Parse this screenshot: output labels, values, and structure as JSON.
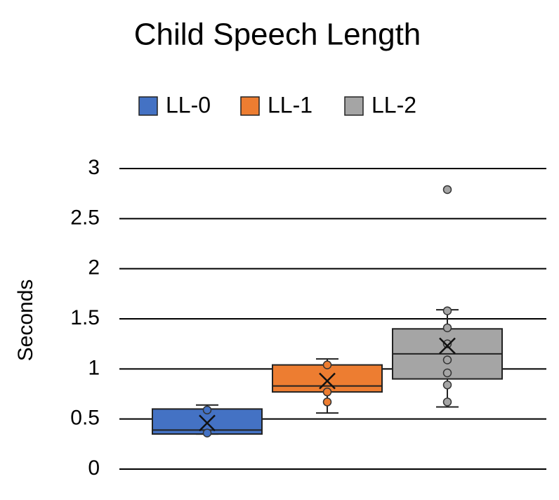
{
  "chart_data": {
    "type": "box",
    "title": "Child Speech Length",
    "y_label": "Seconds",
    "ylim": [
      0,
      3
    ],
    "yticks": [
      0,
      0.5,
      1,
      1.5,
      2,
      2.5,
      3
    ],
    "grid": true,
    "series": [
      {
        "name": "LL-0",
        "color": "#4472c4",
        "whisker_low": 0.35,
        "q1": 0.35,
        "median": 0.39,
        "q3": 0.6,
        "whisker_high": 0.64,
        "mean": 0.46,
        "points": [
          0.59,
          0.36
        ]
      },
      {
        "name": "LL-1",
        "color": "#ed7d31",
        "whisker_low": 0.56,
        "q1": 0.77,
        "median": 0.83,
        "q3": 1.04,
        "whisker_high": 1.1,
        "mean": 0.88,
        "points": [
          1.04,
          0.77,
          0.67
        ]
      },
      {
        "name": "LL-2",
        "color": "#a5a5a5",
        "whisker_low": 0.62,
        "q1": 0.9,
        "median": 1.15,
        "q3": 1.4,
        "whisker_high": 1.59,
        "mean": 1.23,
        "points": [
          1.58,
          1.41,
          1.25,
          1.09,
          0.96,
          0.84,
          0.67,
          2.79
        ]
      }
    ]
  }
}
